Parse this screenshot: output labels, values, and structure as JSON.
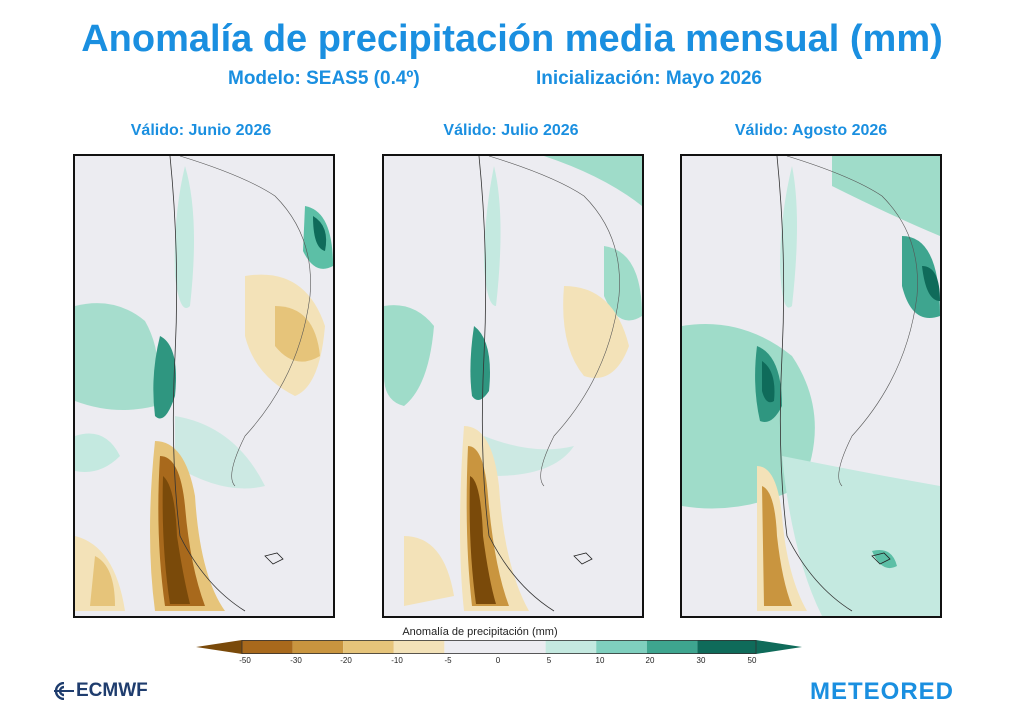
{
  "title": "Anomalía de precipitación media mensual (mm)",
  "subtitle_model": "Modelo: SEAS5 (0.4º)",
  "subtitle_init": "Inicialización: Mayo 2026",
  "panels": [
    {
      "label": "Válido: Junio 2026"
    },
    {
      "label": "Válido: Julio 2026"
    },
    {
      "label": "Válido: Agosto 2026"
    }
  ],
  "colorbar": {
    "title": "Anomalía de precipitación (mm)",
    "ticks": [
      "-50",
      "-30",
      "-20",
      "-10",
      "-5",
      "0",
      "5",
      "10",
      "20",
      "30",
      "50"
    ],
    "colors": [
      "#7a4a0a",
      "#a8691c",
      "#c9953f",
      "#e6c47a",
      "#f3e2b8",
      "#ececf1",
      "#ececf1",
      "#c4e9e0",
      "#7fcfbe",
      "#3ea58f",
      "#0f6b5a"
    ]
  },
  "logos": {
    "left": "ECMWF",
    "left_icon": "ecmwf-logo-icon",
    "right": "METEORED"
  }
}
